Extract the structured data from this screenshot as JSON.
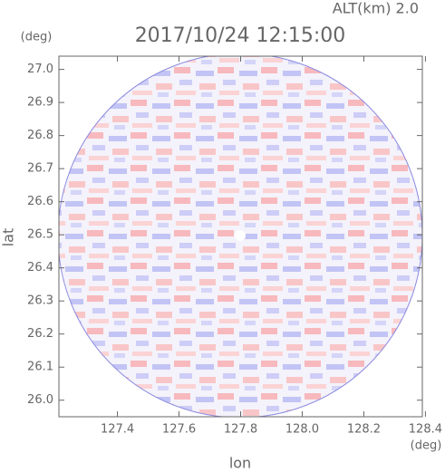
{
  "chart_data": {
    "type": "radar-ppi",
    "title": "2017/10/24 12:15:00",
    "subtitle": "ALT(km) 2.0",
    "x_label": "lon",
    "y_label": "lat",
    "x_unit": "(deg)",
    "y_unit": "(deg)",
    "xlim": [
      127.21,
      128.39
    ],
    "ylim": [
      25.95,
      27.04
    ],
    "xticks": [
      127.4,
      127.6,
      127.8,
      {
        "value": 128,
        "label": "128.0"
      },
      128.2,
      128.4
    ],
    "yticks": [
      {
        "value": 26,
        "label": "26.0"
      },
      26.1,
      26.2,
      26.3,
      26.4,
      26.5,
      26.6,
      26.7,
      26.8,
      26.9,
      {
        "value": 27,
        "label": "27.0"
      }
    ]
  }
}
